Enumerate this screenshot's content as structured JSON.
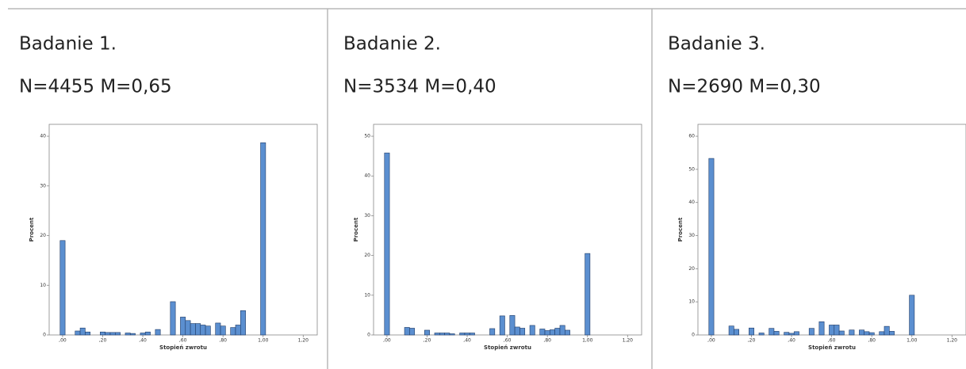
{
  "chart_data": [
    {
      "type": "histogram",
      "title": "Badanie 1.",
      "subtitle": "N=4455 M=0,65",
      "xlabel": "Stopień zwrotu",
      "ylabel": "Procent",
      "color": "#5b8fd0",
      "bins": [
        -0.0125,
        0.0125,
        0.0375,
        0.0625,
        0.0875,
        0.1125,
        0.1375,
        0.1625,
        0.1875,
        0.2125,
        0.2375,
        0.2625,
        0.2875,
        0.3125,
        0.3375,
        0.3625,
        0.3875,
        0.4125,
        0.4375,
        0.4625,
        0.4875,
        0.5125,
        0.5375,
        0.5625,
        0.5875,
        0.6125,
        0.6375,
        0.6625,
        0.6875,
        0.7125,
        0.7375,
        0.7625,
        0.7875,
        0.8125,
        0.8375,
        0.8625,
        0.8875,
        0.9125,
        0.9375,
        0.9625,
        0.9875,
        1.0125
      ],
      "values": [
        19,
        0,
        0,
        0.8,
        1.4,
        0.6,
        0,
        0,
        0.6,
        0.5,
        0.5,
        0.5,
        0,
        0.4,
        0.3,
        0,
        0.4,
        0.6,
        0,
        1.1,
        0,
        0,
        6.7,
        0,
        3.6,
        2.9,
        2.3,
        2.3,
        2.0,
        1.8,
        0,
        2.4,
        1.8,
        0,
        1.5,
        2.0,
        4.9,
        0,
        0,
        0,
        38.7
      ],
      "xlim": [
        -0.067,
        1.27
      ],
      "xticks": [
        {
          "value": 0,
          "label": ",00"
        },
        {
          "value": 0.2,
          "label": ",20"
        },
        {
          "value": 0.4,
          "label": ",40"
        },
        {
          "value": 0.6,
          "label": ",60"
        },
        {
          "value": 0.8,
          "label": ",80"
        },
        {
          "value": 1.0,
          "label": "1,00"
        },
        {
          "value": 1.2,
          "label": "1,20"
        }
      ],
      "ylim": [
        0,
        42.4
      ],
      "yticks": [
        0,
        10,
        20,
        30,
        40
      ],
      "grid": false
    },
    {
      "type": "histogram",
      "title": "Badanie 2.",
      "subtitle": "N=3534 M=0,40",
      "xlabel": "Stopień zwrotu",
      "ylabel": "Procent",
      "color": "#5b8fd0",
      "bins": [
        -0.0125,
        0.0125,
        0.0375,
        0.0625,
        0.0875,
        0.1125,
        0.1375,
        0.1625,
        0.1875,
        0.2125,
        0.2375,
        0.2625,
        0.2875,
        0.3125,
        0.3375,
        0.3625,
        0.3875,
        0.4125,
        0.4375,
        0.4625,
        0.4875,
        0.5125,
        0.5375,
        0.5625,
        0.5875,
        0.6125,
        0.6375,
        0.6625,
        0.6875,
        0.7125,
        0.7375,
        0.7625,
        0.7875,
        0.8125,
        0.8375,
        0.8625,
        0.8875,
        0.9125,
        0.9375,
        0.9625,
        0.9875,
        1.0125
      ],
      "values": [
        45.8,
        0,
        0,
        0,
        1.9,
        1.7,
        0,
        0,
        1.2,
        0,
        0.5,
        0.5,
        0.5,
        0.3,
        0,
        0.5,
        0.5,
        0.5,
        0,
        0,
        0,
        1.6,
        0,
        4.8,
        0,
        4.9,
        2.0,
        1.7,
        0,
        2.4,
        0,
        1.5,
        1.1,
        1.3,
        1.7,
        2.4,
        1.2,
        0,
        0,
        0,
        20.5
      ],
      "xlim": [
        -0.067,
        1.27
      ],
      "xticks": [
        {
          "value": 0,
          "label": ",00"
        },
        {
          "value": 0.2,
          "label": ",20"
        },
        {
          "value": 0.4,
          "label": ",40"
        },
        {
          "value": 0.6,
          "label": ",60"
        },
        {
          "value": 0.8,
          "label": ",80"
        },
        {
          "value": 1.0,
          "label": "1,00"
        },
        {
          "value": 1.2,
          "label": "1,20"
        }
      ],
      "ylim": [
        0,
        53
      ],
      "yticks": [
        0,
        10,
        20,
        30,
        40,
        50
      ],
      "grid": false
    },
    {
      "type": "histogram",
      "title": "Badanie 3.",
      "subtitle": "N=2690 M=0,30",
      "xlabel": "Stopień zwrotu",
      "ylabel": "Procent",
      "color": "#5b8fd0",
      "bins": [
        -0.0125,
        0.0125,
        0.0375,
        0.0625,
        0.0875,
        0.1125,
        0.1375,
        0.1625,
        0.1875,
        0.2125,
        0.2375,
        0.2625,
        0.2875,
        0.3125,
        0.3375,
        0.3625,
        0.3875,
        0.4125,
        0.4375,
        0.4625,
        0.4875,
        0.5125,
        0.5375,
        0.5625,
        0.5875,
        0.6125,
        0.6375,
        0.6625,
        0.6875,
        0.7125,
        0.7375,
        0.7625,
        0.7875,
        0.8125,
        0.8375,
        0.8625,
        0.8875,
        0.9125,
        0.9375,
        0.9625,
        0.9875,
        1.0125
      ],
      "values": [
        53.3,
        0,
        0,
        0,
        2.7,
        1.7,
        0,
        0,
        2.1,
        0,
        0.6,
        0,
        2.0,
        1.1,
        0,
        0.8,
        0.5,
        1.0,
        0,
        0,
        2.0,
        0,
        4.0,
        0,
        3.0,
        3.0,
        1.2,
        0,
        1.5,
        0,
        1.5,
        1.0,
        0.7,
        0,
        1.0,
        2.6,
        1.1,
        0,
        0,
        0,
        12.0
      ],
      "xlim": [
        -0.067,
        1.27
      ],
      "xticks": [
        {
          "value": 0,
          "label": ",00"
        },
        {
          "value": 0.2,
          "label": ",20"
        },
        {
          "value": 0.4,
          "label": ",40"
        },
        {
          "value": 0.6,
          "label": ",60"
        },
        {
          "value": 0.8,
          "label": ",80"
        },
        {
          "value": 1.0,
          "label": "1,00"
        },
        {
          "value": 1.2,
          "label": "1,20"
        }
      ],
      "ylim": [
        0,
        63.6
      ],
      "yticks": [
        0,
        10,
        20,
        30,
        40,
        50,
        60
      ],
      "grid": false
    }
  ]
}
